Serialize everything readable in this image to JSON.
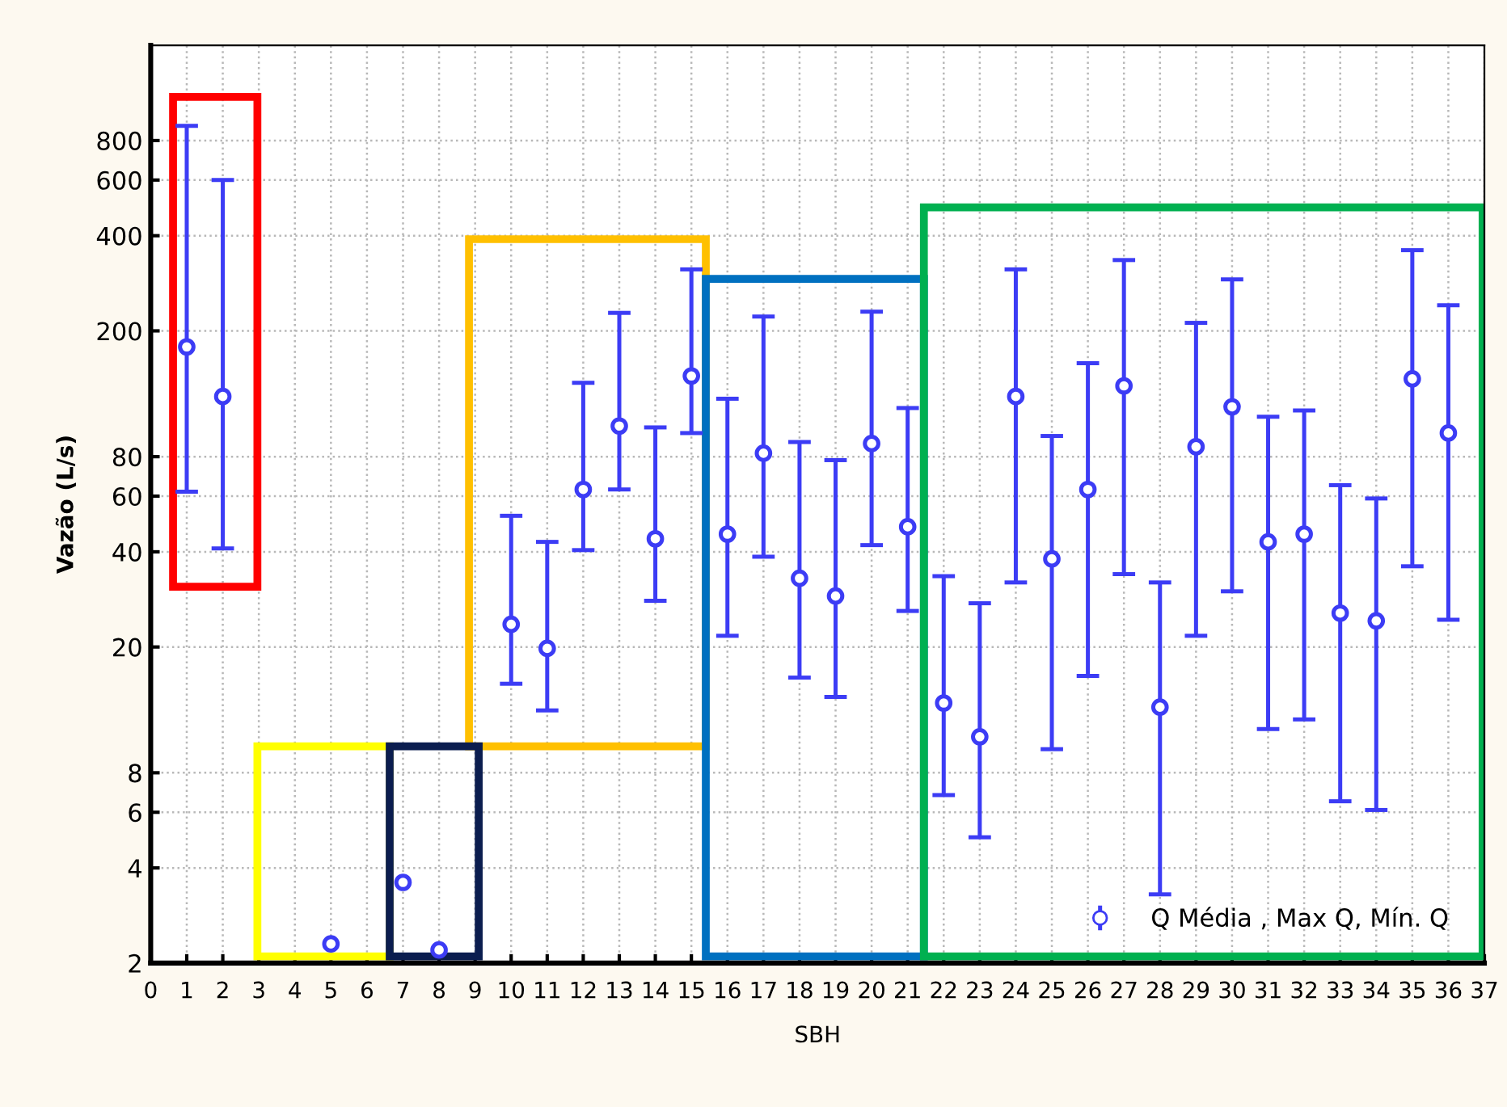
{
  "chart_data": {
    "type": "scatter",
    "xlabel": "SBH",
    "ylabel": "Vazão (L/s)",
    "x": [
      1,
      2,
      3,
      4,
      5,
      6,
      7,
      8,
      9,
      10,
      11,
      12,
      13,
      14,
      15,
      16,
      17,
      18,
      19,
      20,
      21,
      22,
      23,
      24,
      25,
      26,
      27,
      28,
      29,
      30,
      31,
      32,
      33,
      34,
      35,
      36
    ],
    "series": [
      {
        "name": "Q Média , Max Q, Mín. Q",
        "color": "#3c3cf5",
        "values": [
          178,
          124,
          null,
          null,
          2.3,
          null,
          3.6,
          2.2,
          null,
          23.6,
          19.8,
          63,
          100,
          44,
          144,
          45.5,
          82,
          33,
          29,
          88,
          48,
          13.3,
          10.4,
          124,
          38,
          63,
          134,
          12.9,
          86,
          115,
          43,
          45.5,
          25.6,
          24.2,
          141,
          95
        ],
        "errors": [
          [
            62,
            890
          ],
          [
            41,
            600
          ],
          null,
          null,
          null,
          null,
          null,
          null,
          null,
          [
            15.3,
            52
          ],
          [
            12.6,
            43
          ],
          [
            40.5,
            137
          ],
          [
            63,
            228
          ],
          [
            28,
            99
          ],
          [
            95,
            313
          ],
          [
            21.7,
            122
          ],
          [
            38.6,
            222
          ],
          [
            16,
            89
          ],
          [
            13.9,
            78
          ],
          [
            42,
            230
          ],
          [
            26,
            114
          ],
          [
            6.8,
            33.5
          ],
          [
            5,
            27.5
          ],
          [
            32,
            313
          ],
          [
            9.5,
            93
          ],
          [
            16.2,
            158
          ],
          [
            34,
            335
          ],
          [
            3.3,
            32
          ],
          [
            21.7,
            212
          ],
          [
            30,
            291
          ],
          [
            11,
            107
          ],
          [
            11.8,
            112
          ],
          [
            6.5,
            65
          ],
          [
            6.1,
            59
          ],
          [
            36,
            360
          ],
          [
            24.4,
            241
          ]
        ]
      }
    ],
    "log": "y",
    "ylim": [
      2,
      1600
    ],
    "yticks": [
      2,
      4,
      6,
      8,
      20,
      40,
      60,
      80,
      200,
      400,
      600,
      800
    ],
    "xlim": [
      0,
      37
    ],
    "xticks": [
      0,
      1,
      2,
      3,
      4,
      5,
      6,
      7,
      8,
      9,
      10,
      11,
      12,
      13,
      14,
      15,
      16,
      17,
      18,
      19,
      20,
      21,
      22,
      23,
      24,
      25,
      26,
      27,
      28,
      29,
      30,
      31,
      32,
      33,
      34,
      35,
      36,
      37
    ],
    "grid": true,
    "marker": "circle",
    "legend": "bottom right"
  }
}
